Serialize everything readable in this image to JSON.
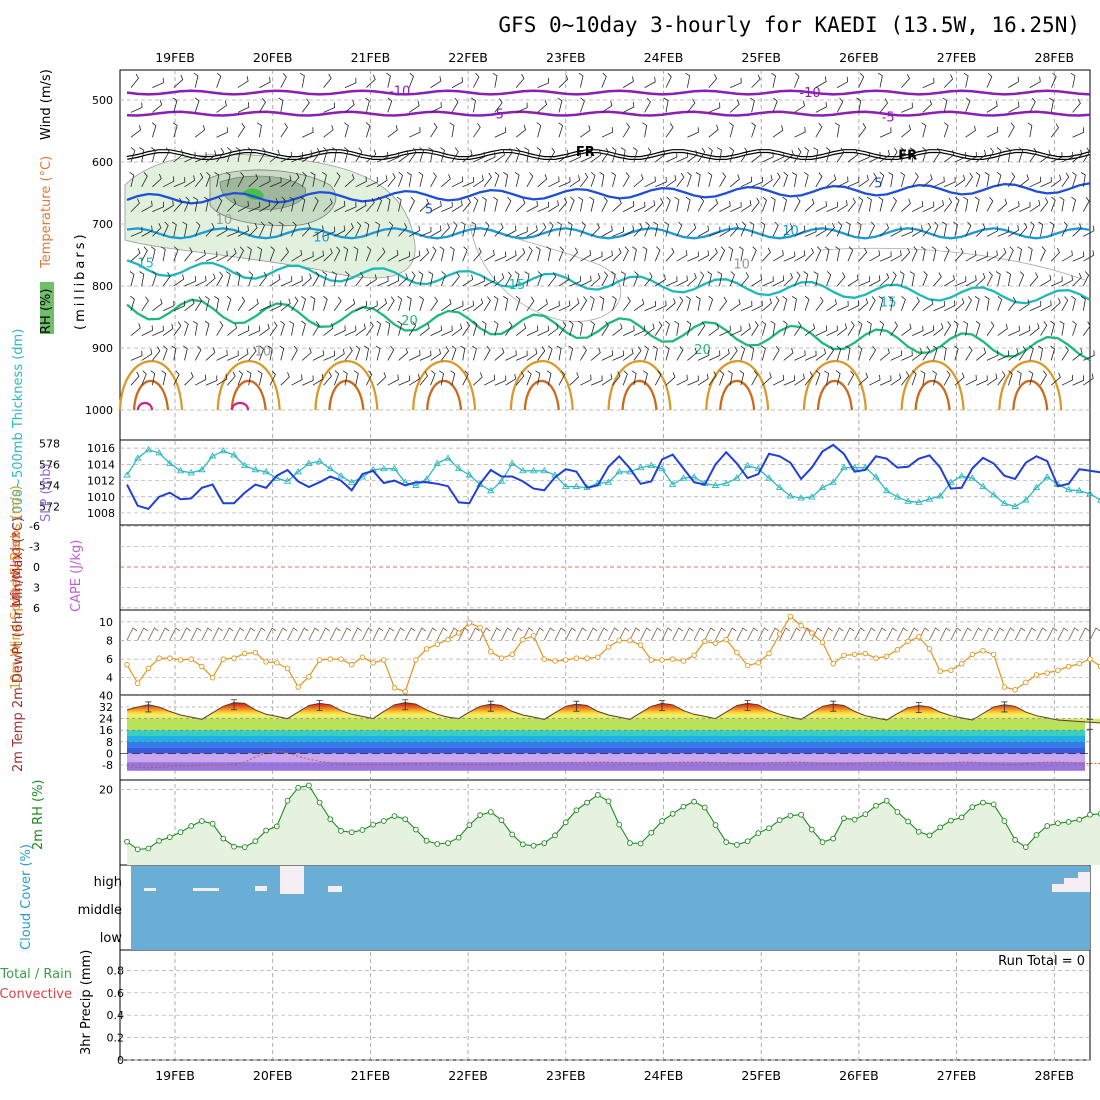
{
  "title": "GFS 0~10day 3-hourly for KAEDI (13.5W, 16.25N)",
  "colors": {
    "purple": "#8a1fb5",
    "black": "#000000",
    "blue": "#1f4fd6",
    "lightblue": "#1a9ad6",
    "cyan": "#1fb8b8",
    "green": "#1fb87a",
    "orange": "#d99a2b",
    "thickness": "#2fb8c0",
    "slp": "#1f3fd6",
    "wind10m": "#e0961f",
    "rh2m": "#1f8a1f",
    "cloud": "#6aaed6",
    "zero_line": "#e04040"
  },
  "chart_data": [
    {
      "type": "line",
      "panel": "upper_air",
      "ylabel": "(millibars)",
      "legend_labels": [
        "RH (%)",
        "Temperature (°C)",
        "Wind (m/s)"
      ],
      "y_ticks": [
        500,
        600,
        700,
        800,
        900,
        1000
      ],
      "x_ticks": [
        "19FEB",
        "20FEB",
        "21FEB",
        "22FEB",
        "23FEB",
        "24FEB",
        "25FEB",
        "26FEB",
        "27FEB",
        "28FEB"
      ],
      "isotherm_labels": [
        {
          "text": "-10",
          "level": 485,
          "day": 2.3
        },
        {
          "text": "-10",
          "level": 487,
          "day": 6.5
        },
        {
          "text": "-5",
          "level": 522,
          "day": 3.3
        },
        {
          "text": "-5",
          "level": 527,
          "day": 7.3
        },
        {
          "text": "FR",
          "level": 582,
          "day": 4.2
        },
        {
          "text": "FR",
          "level": 588,
          "day": 7.5
        },
        {
          "text": "5",
          "level": 675,
          "day": 2.6
        },
        {
          "text": "5",
          "level": 633,
          "day": 7.2
        },
        {
          "text": "10",
          "level": 720,
          "day": 1.5
        },
        {
          "text": "10",
          "level": 710,
          "day": 6.3
        },
        {
          "text": "15",
          "level": 762,
          "day": -0.3
        },
        {
          "text": "15",
          "level": 797,
          "day": 3.5
        },
        {
          "text": "15",
          "level": 825,
          "day": 7.3
        },
        {
          "text": "20",
          "level": 855,
          "day": 2.4
        },
        {
          "text": "20",
          "level": 902,
          "day": 5.4
        },
        {
          "text": "10",
          "level": 692,
          "day": 0.5
        },
        {
          "text": "10",
          "level": 904,
          "day": 0.9
        },
        {
          "text": "10",
          "level": 764,
          "day": 5.8
        }
      ]
    },
    {
      "type": "line",
      "panel": "thickness_slp",
      "ylabel_left": "1000~500mb Thickness (dm)",
      "ylabel_right": "SLP (mb)",
      "left_ticks": [
        572,
        574,
        576,
        578
      ],
      "right_ticks": [
        1008,
        1010,
        1012,
        1014,
        1016
      ],
      "series": [
        {
          "name": "1000~500mb Thickness (dm)",
          "axis": "left",
          "values": [
            575.0,
            576.6,
            577.4,
            577.1,
            576.1,
            575.4,
            575.2,
            575.5,
            576.8,
            577.3,
            576.9,
            575.9,
            575.5,
            575.3,
            574.7,
            574.4,
            575.3,
            576.1,
            576.3,
            575.6,
            574.9,
            574.3,
            574.8,
            575.5,
            575.6,
            575.6,
            574.3,
            574.0,
            574.6,
            576.1,
            576.6,
            575.6,
            575.0,
            574.1,
            573.5,
            574.4,
            576.1,
            575.4,
            575.4,
            575.4,
            575.0,
            573.9,
            573.9,
            573.8,
            574.2,
            574.3,
            575.3,
            575.3,
            575.7,
            575.9,
            575.6,
            574.1,
            574.7,
            574.8,
            574.2,
            574.0,
            574.2,
            574.7,
            575.9,
            575.6,
            574.7,
            573.8,
            573.0,
            572.8,
            572.9,
            573.8,
            574.3,
            575.7,
            575.7,
            575.7,
            574.8,
            573.5,
            572.9,
            572.5,
            572.4,
            572.7,
            573.0,
            574.3,
            574.9,
            574.7,
            573.9,
            573.1,
            572.3,
            572.0,
            572.6,
            573.8,
            574.8,
            574.1,
            573.6,
            573.5,
            573.2,
            572.6
          ]
        },
        {
          "name": "SLP (mb)",
          "axis": "right",
          "values": [
            1011.5,
            1008.9,
            1008.5,
            1010.0,
            1010.5,
            1009.7,
            1009.8,
            1011.1,
            1011.5,
            1009.2,
            1009.2,
            1010.5,
            1011.5,
            1011.1,
            1012.6,
            1013.3,
            1011.9,
            1011.2,
            1011.8,
            1012.5,
            1012.0,
            1010.8,
            1012.8,
            1013.2,
            1011.7,
            1012.0,
            1011.4,
            1011.8,
            1011.8,
            1011.6,
            1011.3,
            1009.3,
            1009.2,
            1011.6,
            1013.3,
            1012.5,
            1012.5,
            1011.9,
            1011.0,
            1010.8,
            1012.4,
            1013.4,
            1013.1,
            1011.1,
            1011.4,
            1013.7,
            1015.0,
            1013.5,
            1011.6,
            1011.9,
            1014.6,
            1015.2,
            1013.5,
            1011.8,
            1011.5,
            1014.0,
            1015.5,
            1014.1,
            1012.3,
            1012.8,
            1015.3,
            1015.0,
            1014.2,
            1012.2,
            1013.6,
            1015.6,
            1016.4,
            1015.3,
            1013.1,
            1013.3,
            1015.0,
            1014.7,
            1013.6,
            1013.7,
            1014.7,
            1015.1,
            1013.6,
            1011.0,
            1011.1,
            1013.5,
            1014.8,
            1014.1,
            1012.6,
            1012.2,
            1014.2,
            1015.0,
            1014.4,
            1011.3,
            1011.6,
            1013.4,
            1013.2,
            1013.0
          ]
        }
      ]
    },
    {
      "type": "line",
      "panel": "stability",
      "ylabel_left": "Lifted Index",
      "ylabel_right": "CAPE (J/kg)",
      "left_ticks": [
        -6,
        -3,
        0,
        3,
        6
      ],
      "tick_labels": [
        "-6",
        "-3",
        "0",
        "3",
        "6"
      ],
      "series": []
    },
    {
      "type": "line",
      "panel": "wind10m",
      "ylabel": "10m Wind Speed & Barbs (m/s)",
      "y_ticks": [
        4,
        6,
        8,
        10
      ],
      "series": [
        {
          "name": "10m Wind Speed",
          "values": [
            5.4,
            3.4,
            5.0,
            6.1,
            6.1,
            5.9,
            6.0,
            5.2,
            4.0,
            6.0,
            6.1,
            6.6,
            6.7,
            5.7,
            5.6,
            5.0,
            3.0,
            4.1,
            5.9,
            6.0,
            6.0,
            5.4,
            6.2,
            5.6,
            5.9,
            2.9,
            2.5,
            5.9,
            7.1,
            7.6,
            8.1,
            8.8,
            9.9,
            9.4,
            6.8,
            6.1,
            6.5,
            8.1,
            8.5,
            6.0,
            5.8,
            5.9,
            6.1,
            6.1,
            6.2,
            7.3,
            8.0,
            8.0,
            7.5,
            5.9,
            5.9,
            6.0,
            5.8,
            6.4,
            7.9,
            7.7,
            8.1,
            6.7,
            5.3,
            5.6,
            6.6,
            8.7,
            10.6,
            9.6,
            8.8,
            7.8,
            5.5,
            6.4,
            6.5,
            6.6,
            6.1,
            6.3,
            7.0,
            7.9,
            8.4,
            7.1,
            4.7,
            4.8,
            5.5,
            6.5,
            6.9,
            6.5,
            3.0,
            2.7,
            3.5,
            4.3,
            4.5,
            4.8,
            5.2,
            5.5,
            6.0,
            5.2
          ]
        }
      ]
    },
    {
      "type": "area",
      "panel": "temperature",
      "ylabel": "2m Temp 2m DewPt (6hr Min/Max) (°C)",
      "y_ticks": [
        -8,
        0,
        8,
        16,
        24,
        32,
        40
      ],
      "series": [
        {
          "name": "2m Temp",
          "values": [
            30.0,
            32.0,
            33.5,
            32.0,
            29.0,
            26.5,
            25.0,
            23.5,
            28.0,
            32.5,
            35.0,
            34.5,
            30.0,
            27.0,
            25.5,
            24.0,
            28.5,
            33.0,
            34.5,
            33.5,
            29.5,
            27.0,
            25.5,
            24.0,
            29.0,
            33.5,
            35.0,
            34.0,
            30.0,
            27.0,
            25.0,
            24.0,
            28.5,
            32.5,
            34.0,
            33.0,
            29.0,
            26.5,
            25.0,
            23.5,
            28.0,
            32.5,
            34.0,
            33.0,
            29.0,
            26.5,
            25.0,
            23.5,
            28.0,
            32.5,
            34.5,
            33.5,
            29.5,
            27.0,
            25.5,
            24.0,
            28.5,
            33.0,
            34.5,
            33.5,
            29.5,
            27.0,
            25.0,
            23.5,
            28.0,
            32.5,
            34.0,
            33.0,
            29.0,
            26.0,
            24.5,
            23.0,
            27.5,
            31.5,
            33.0,
            32.0,
            28.5,
            26.0,
            24.5,
            23.0,
            27.5,
            32.0,
            33.5,
            32.5,
            28.5,
            26.0,
            24.5,
            23.0,
            22.5,
            22.0,
            21.5,
            21.0
          ]
        },
        {
          "name": "2m DewPt",
          "values": [
            -9.0,
            -9.5,
            -10.0,
            -9.5,
            -9.0,
            -8.5,
            -8.5,
            -8.0,
            -8.0,
            -8.0,
            -7.5,
            -6.0,
            -2.5,
            0.0,
            1.5,
            0.5,
            -2.0,
            -4.0,
            -5.5,
            -6.5,
            -7.0,
            -7.5,
            -7.5,
            -7.5,
            -7.5,
            -7.5,
            -7.0,
            -7.0,
            -7.0,
            -6.5,
            -7.0,
            -7.5,
            -7.5,
            -7.5,
            -7.5,
            -7.0,
            -7.0,
            -6.5,
            -6.5,
            -6.5,
            -6.5,
            -6.5,
            -6.5,
            -6.0,
            -6.0,
            -6.0,
            -6.5,
            -6.5,
            -7.0,
            -7.0,
            -6.5,
            -6.5,
            -6.0,
            -6.0,
            -6.0,
            -6.5,
            -6.5,
            -7.0,
            -7.0,
            -7.0,
            -6.5,
            -6.5,
            -6.0,
            -6.0,
            -6.5,
            -7.0,
            -7.0,
            -7.0,
            -7.0,
            -6.5,
            -6.5,
            -6.0,
            -6.0,
            -6.5,
            -7.0,
            -7.0,
            -7.0,
            -6.5,
            -6.0,
            -6.0,
            -6.5,
            -7.0,
            -7.5,
            -7.5,
            -7.0,
            -6.5,
            -6.0,
            -6.0,
            -6.5,
            -7.0,
            -7.0,
            -7.0
          ]
        }
      ]
    },
    {
      "type": "area",
      "panel": "rh2m",
      "ylabel": "2m RH (%)",
      "y_ticks": [
        20
      ],
      "series": [
        {
          "name": "2m RH",
          "values": [
            8.4,
            6.7,
            6.9,
            8.6,
            9.4,
            10.5,
            11.9,
            13.0,
            12.4,
            9.1,
            7.3,
            7.2,
            8.5,
            10.9,
            11.8,
            17.5,
            20.4,
            20.9,
            17.1,
            13.4,
            10.8,
            10.5,
            11.0,
            12.2,
            13.0,
            14.1,
            13.4,
            11.1,
            8.6,
            7.9,
            8.1,
            9.3,
            12.1,
            14.3,
            15.0,
            13.2,
            10.0,
            7.8,
            7.5,
            8.1,
            9.8,
            12.7,
            15.4,
            17.1,
            18.8,
            17.4,
            12.2,
            8.1,
            8.0,
            10.4,
            13.0,
            14.6,
            16.2,
            17.3,
            16.0,
            12.1,
            8.3,
            7.7,
            8.5,
            10.3,
            11.4,
            13.2,
            14.2,
            14.4,
            11.1,
            8.3,
            9.1,
            13.6,
            13.3,
            14.5,
            16.4,
            17.5,
            15.0,
            12.9,
            10.6,
            9.8,
            11.6,
            13.1,
            13.8,
            16.1,
            17.1,
            16.7,
            13.0,
            8.8,
            7.2,
            9.9,
            11.9,
            12.5,
            12.8,
            13.3,
            14.4,
            14.6
          ]
        }
      ]
    },
    {
      "type": "heatmap",
      "panel": "cloud",
      "ylabel": "Cloud Cover (%)",
      "y_labels": [
        "high",
        "middle",
        "low"
      ]
    },
    {
      "type": "bar",
      "panel": "precip",
      "ylabel": "3hr Precip (mm)",
      "legend_labels": [
        "Total / Rain",
        "Convective"
      ],
      "y_ticks": [
        0,
        0.2,
        0.4,
        0.6,
        0.8
      ],
      "tick_labels": [
        "0",
        "0.2",
        "0.4",
        "0.6",
        "0.8"
      ],
      "annotation": "Run Total = 0",
      "values": []
    }
  ]
}
